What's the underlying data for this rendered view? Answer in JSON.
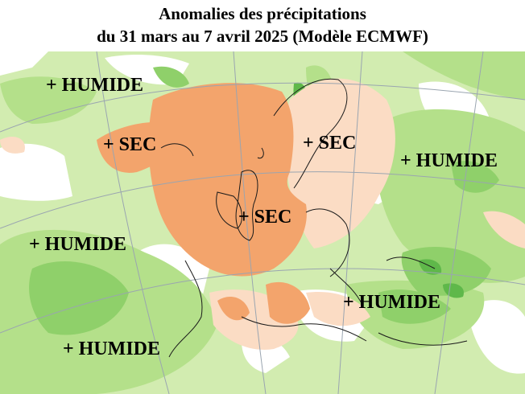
{
  "header": {
    "title_line1": "Anomalies des précipitations",
    "title_line2": "du 31 mars au 7 avril 2025 (Modèle ECMWF)"
  },
  "map": {
    "colors": {
      "wet_light": "#d2ecb0",
      "wet_medium": "#b4e08a",
      "wet_strong": "#8fd06a",
      "wet_very_strong": "#5fb84a",
      "dry_light": "#fbdcc4",
      "dry_medium": "#f6b98a",
      "dry_strong": "#f3a46c",
      "neutral": "#ffffff",
      "coastline": "#1a1a1a",
      "graticule": "#9aa5b0"
    },
    "labels": [
      {
        "id": "humide-nw",
        "text": "+ HUMIDE"
      },
      {
        "id": "sec-west",
        "text": "+ SEC"
      },
      {
        "id": "sec-scandinavia",
        "text": "+ SEC"
      },
      {
        "id": "humide-east",
        "text": "+ HUMIDE"
      },
      {
        "id": "sec-center",
        "text": "+ SEC"
      },
      {
        "id": "humide-west",
        "text": "+ HUMIDE"
      },
      {
        "id": "humide-southeast",
        "text": "+ HUMIDE"
      },
      {
        "id": "humide-southwest",
        "text": "+ HUMIDE"
      }
    ]
  }
}
